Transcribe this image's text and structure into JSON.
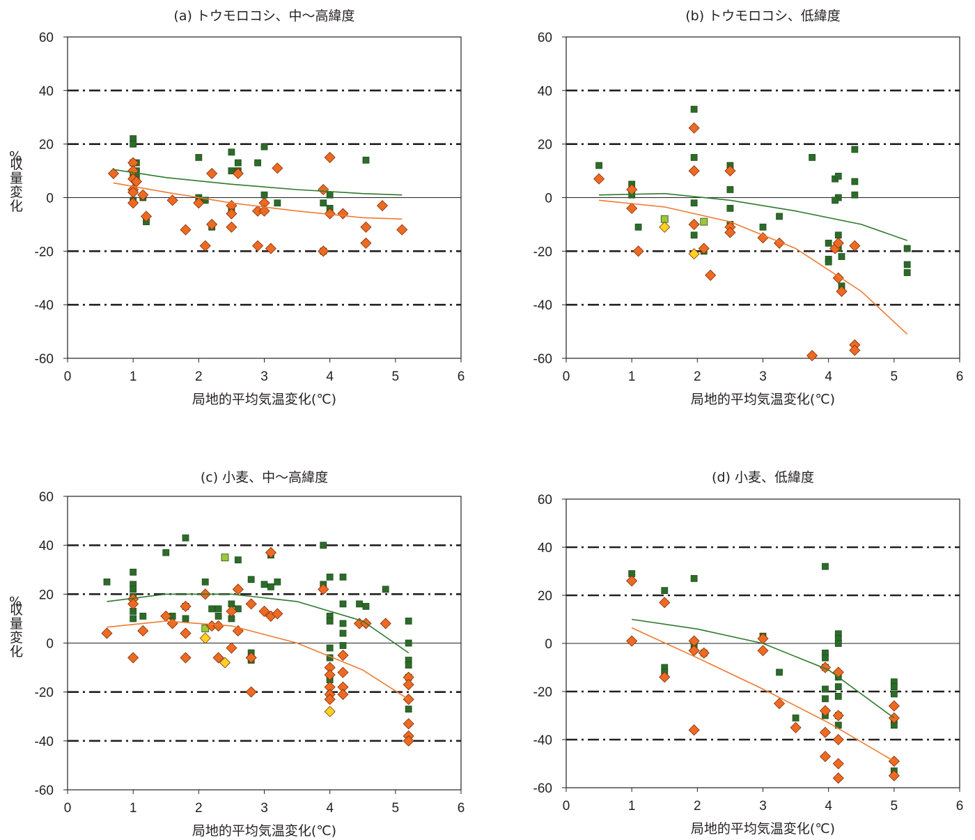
{
  "colors": {
    "square": "#2d6b2a",
    "square_stroke": "#1f4f1d",
    "diamond": "#ee6a22",
    "diamond_stroke": "#7a2e0a",
    "square_highlight": "#9dc73c",
    "diamond_highlight": "#ffd21f",
    "trend_square": "#2d7a2d",
    "trend_diamond": "#f07a30",
    "axis": "#231f20"
  },
  "ylabel_percent": "%",
  "ylabel": "収量変化",
  "chart_data": [
    {
      "type": "scatter",
      "title": "(a) トウモロコシ、中～高緯度",
      "xlabel": "局地的平均気温変化(℃)",
      "xlim": [
        0,
        6
      ],
      "ylim": [
        -60,
        60
      ],
      "xticks": [
        "0",
        "1",
        "2",
        "3",
        "4",
        "5",
        "6"
      ],
      "yticks": [
        "60",
        "40",
        "20",
        "0",
        "-20",
        "-40",
        "-60"
      ],
      "grid": [
        40,
        20,
        -20,
        -40
      ],
      "squares": [
        [
          1.0,
          22
        ],
        [
          1.0,
          20
        ],
        [
          1.0,
          13
        ],
        [
          1.05,
          13
        ],
        [
          1.05,
          10
        ],
        [
          1.0,
          9
        ],
        [
          1.05,
          8
        ],
        [
          1.0,
          -1
        ],
        [
          1.15,
          0
        ],
        [
          1.2,
          -9
        ],
        [
          2.0,
          15
        ],
        [
          2.0,
          0
        ],
        [
          2.1,
          -1
        ],
        [
          2.2,
          -11
        ],
        [
          2.5,
          17
        ],
        [
          2.5,
          10
        ],
        [
          2.5,
          -4
        ],
        [
          2.6,
          10
        ],
        [
          2.6,
          13
        ],
        [
          2.9,
          13
        ],
        [
          3.0,
          19
        ],
        [
          3.0,
          1
        ],
        [
          3.2,
          -2
        ],
        [
          3.9,
          -2
        ],
        [
          3.9,
          -20
        ],
        [
          4.0,
          1
        ],
        [
          4.0,
          -4
        ],
        [
          4.55,
          14
        ]
      ],
      "diamonds": [
        [
          0.7,
          9
        ],
        [
          1.0,
          13
        ],
        [
          1.0,
          10
        ],
        [
          1.0,
          7
        ],
        [
          1.0,
          3
        ],
        [
          1.0,
          2
        ],
        [
          1.0,
          -2
        ],
        [
          1.05,
          6
        ],
        [
          1.15,
          1
        ],
        [
          1.2,
          -7
        ],
        [
          1.6,
          -1
        ],
        [
          1.8,
          -12
        ],
        [
          2.0,
          -2
        ],
        [
          2.1,
          -18
        ],
        [
          2.2,
          9
        ],
        [
          2.2,
          -10
        ],
        [
          2.5,
          -3
        ],
        [
          2.5,
          -6
        ],
        [
          2.5,
          -11
        ],
        [
          2.6,
          9
        ],
        [
          2.9,
          -5
        ],
        [
          2.9,
          -18
        ],
        [
          3.0,
          -2
        ],
        [
          3.0,
          -5
        ],
        [
          3.1,
          -19
        ],
        [
          3.2,
          11
        ],
        [
          3.9,
          3
        ],
        [
          3.9,
          -20
        ],
        [
          4.0,
          -6
        ],
        [
          4.0,
          15
        ],
        [
          4.2,
          -6
        ],
        [
          4.55,
          -11
        ],
        [
          4.55,
          -17
        ],
        [
          4.8,
          -3
        ],
        [
          5.1,
          -12
        ]
      ],
      "highlight_squares": [],
      "highlight_diamonds": [],
      "trend_squares": [
        [
          0.7,
          10.5
        ],
        [
          1.5,
          7.5
        ],
        [
          2.5,
          5
        ],
        [
          3.5,
          3
        ],
        [
          4.5,
          1.5
        ],
        [
          5.1,
          1
        ]
      ],
      "trend_diamonds": [
        [
          0.7,
          5.5
        ],
        [
          1.5,
          2
        ],
        [
          2.5,
          -2
        ],
        [
          3.5,
          -5
        ],
        [
          4.5,
          -7.5
        ],
        [
          5.1,
          -8
        ]
      ]
    },
    {
      "type": "scatter",
      "title": "(b) トウモロコシ、低緯度",
      "xlabel": "局地的平均気温変化(℃)",
      "xlim": [
        0,
        6
      ],
      "ylim": [
        -60,
        60
      ],
      "xticks": [
        "0",
        "1",
        "2",
        "3",
        "4",
        "5",
        "6"
      ],
      "yticks": [
        "60",
        "40",
        "20",
        "0",
        "-20",
        "-40",
        "-60"
      ],
      "grid": [
        40,
        20,
        -20,
        -40
      ],
      "squares": [
        [
          0.5,
          12
        ],
        [
          1.0,
          5
        ],
        [
          1.0,
          1
        ],
        [
          1.1,
          -11
        ],
        [
          1.95,
          33
        ],
        [
          1.95,
          15
        ],
        [
          1.95,
          -2
        ],
        [
          1.95,
          -14
        ],
        [
          2.1,
          -20
        ],
        [
          2.5,
          12
        ],
        [
          2.5,
          3
        ],
        [
          2.5,
          -4
        ],
        [
          2.5,
          -10
        ],
        [
          3.0,
          -11
        ],
        [
          3.25,
          -7
        ],
        [
          3.75,
          15
        ],
        [
          4.0,
          -17
        ],
        [
          4.0,
          -23
        ],
        [
          4.0,
          -24
        ],
        [
          4.1,
          7
        ],
        [
          4.15,
          8
        ],
        [
          4.15,
          0
        ],
        [
          4.1,
          -1
        ],
        [
          4.15,
          -14
        ],
        [
          4.15,
          -19
        ],
        [
          4.2,
          -22
        ],
        [
          4.2,
          -33
        ],
        [
          4.4,
          18
        ],
        [
          4.4,
          6
        ],
        [
          4.4,
          1
        ],
        [
          5.2,
          -19
        ],
        [
          5.2,
          -25
        ],
        [
          5.2,
          -28
        ]
      ],
      "diamonds": [
        [
          0.5,
          7
        ],
        [
          1.0,
          3
        ],
        [
          1.0,
          -4
        ],
        [
          1.1,
          -20
        ],
        [
          1.95,
          26
        ],
        [
          1.95,
          10
        ],
        [
          1.95,
          -10
        ],
        [
          2.1,
          -19
        ],
        [
          2.2,
          -29
        ],
        [
          2.5,
          10
        ],
        [
          2.5,
          -11
        ],
        [
          2.5,
          -13
        ],
        [
          3.0,
          -15
        ],
        [
          3.25,
          -17
        ],
        [
          3.75,
          -59
        ],
        [
          4.1,
          -19
        ],
        [
          4.15,
          -17
        ],
        [
          4.15,
          -30
        ],
        [
          4.2,
          -35
        ],
        [
          4.4,
          -18
        ],
        [
          4.4,
          -55
        ],
        [
          4.4,
          -57
        ]
      ],
      "highlight_squares": [
        [
          1.5,
          -8
        ],
        [
          2.1,
          -9
        ]
      ],
      "highlight_diamonds": [
        [
          1.5,
          -11
        ],
        [
          1.95,
          -21
        ]
      ],
      "trend_squares": [
        [
          0.5,
          1
        ],
        [
          1.5,
          1.5
        ],
        [
          2.5,
          -1
        ],
        [
          3.5,
          -5
        ],
        [
          4.5,
          -10
        ],
        [
          5.2,
          -16
        ]
      ],
      "trend_diamonds": [
        [
          0.5,
          -1
        ],
        [
          1.5,
          -3.5
        ],
        [
          2.5,
          -9
        ],
        [
          3.5,
          -19
        ],
        [
          4.5,
          -35
        ],
        [
          5.2,
          -51
        ]
      ]
    },
    {
      "type": "scatter",
      "title": "(c) 小麦、中～高緯度",
      "xlabel": "局地的平均気温変化(℃)",
      "xlim": [
        0,
        6
      ],
      "ylim": [
        -60,
        60
      ],
      "xticks": [
        "0",
        "1",
        "2",
        "3",
        "4",
        "5",
        "6"
      ],
      "yticks": [
        "60",
        "40",
        "20",
        "0",
        "-20",
        "-40",
        "-60"
      ],
      "grid": [
        40,
        20,
        -20,
        -40
      ],
      "squares": [
        [
          0.6,
          25
        ],
        [
          1.0,
          29
        ],
        [
          1.0,
          24
        ],
        [
          1.0,
          22
        ],
        [
          1.0,
          19
        ],
        [
          1.0,
          13
        ],
        [
          1.0,
          10
        ],
        [
          1.15,
          11
        ],
        [
          1.5,
          37
        ],
        [
          1.6,
          11
        ],
        [
          1.8,
          43
        ],
        [
          1.8,
          15
        ],
        [
          1.8,
          10
        ],
        [
          2.1,
          25
        ],
        [
          2.2,
          14
        ],
        [
          2.3,
          14
        ],
        [
          2.3,
          11
        ],
        [
          2.5,
          16
        ],
        [
          2.5,
          10
        ],
        [
          2.6,
          34
        ],
        [
          2.6,
          14
        ],
        [
          2.8,
          26
        ],
        [
          2.8,
          -4
        ],
        [
          2.8,
          -7
        ],
        [
          3.0,
          24
        ],
        [
          3.1,
          36
        ],
        [
          3.1,
          23
        ],
        [
          3.2,
          25
        ],
        [
          3.9,
          40
        ],
        [
          3.9,
          24
        ],
        [
          4.0,
          27
        ],
        [
          4.0,
          11
        ],
        [
          4.0,
          9
        ],
        [
          4.0,
          -2
        ],
        [
          4.0,
          -6
        ],
        [
          4.0,
          -15
        ],
        [
          4.2,
          27
        ],
        [
          4.2,
          16
        ],
        [
          4.2,
          8
        ],
        [
          4.2,
          4
        ],
        [
          4.2,
          -1
        ],
        [
          4.45,
          16
        ],
        [
          4.55,
          15
        ],
        [
          4.85,
          22
        ],
        [
          5.2,
          9
        ],
        [
          5.2,
          0
        ],
        [
          5.2,
          -7
        ],
        [
          5.2,
          -9
        ],
        [
          5.2,
          -14
        ],
        [
          5.2,
          -27
        ]
      ],
      "diamonds": [
        [
          0.6,
          4
        ],
        [
          1.0,
          18
        ],
        [
          1.0,
          16
        ],
        [
          1.0,
          -6
        ],
        [
          1.15,
          5
        ],
        [
          1.5,
          11
        ],
        [
          1.6,
          8
        ],
        [
          1.8,
          15
        ],
        [
          1.8,
          4
        ],
        [
          1.8,
          -6
        ],
        [
          2.1,
          20
        ],
        [
          2.2,
          7
        ],
        [
          2.3,
          7
        ],
        [
          2.3,
          -6
        ],
        [
          2.5,
          13
        ],
        [
          2.5,
          -2
        ],
        [
          2.6,
          22
        ],
        [
          2.6,
          5
        ],
        [
          2.8,
          16
        ],
        [
          2.8,
          -6
        ],
        [
          2.8,
          -20
        ],
        [
          3.0,
          13
        ],
        [
          3.1,
          37
        ],
        [
          3.1,
          11
        ],
        [
          3.2,
          12
        ],
        [
          3.9,
          22
        ],
        [
          4.0,
          -10
        ],
        [
          4.0,
          -13
        ],
        [
          4.0,
          -18
        ],
        [
          4.0,
          -21
        ],
        [
          4.0,
          -23
        ],
        [
          4.2,
          -5
        ],
        [
          4.2,
          -12
        ],
        [
          4.2,
          -18
        ],
        [
          4.2,
          -21
        ],
        [
          4.45,
          8
        ],
        [
          4.55,
          8
        ],
        [
          4.85,
          8
        ],
        [
          5.2,
          -14
        ],
        [
          5.2,
          -17
        ],
        [
          5.2,
          -23
        ],
        [
          5.2,
          -33
        ],
        [
          5.2,
          -38
        ],
        [
          5.2,
          -40
        ]
      ],
      "highlight_squares": [
        [
          2.1,
          6
        ],
        [
          2.4,
          35
        ]
      ],
      "highlight_diamonds": [
        [
          2.1,
          2
        ],
        [
          2.4,
          -8
        ],
        [
          4.0,
          -28
        ]
      ],
      "trend_squares": [
        [
          0.6,
          17
        ],
        [
          1.5,
          20
        ],
        [
          2.5,
          20
        ],
        [
          3.5,
          17
        ],
        [
          4.5,
          9
        ],
        [
          5.2,
          -4
        ]
      ],
      "trend_diamonds": [
        [
          0.6,
          6.5
        ],
        [
          1.5,
          9
        ],
        [
          2.5,
          7
        ],
        [
          3.5,
          0
        ],
        [
          4.5,
          -11
        ],
        [
          5.2,
          -23
        ]
      ]
    },
    {
      "type": "scatter",
      "title": "(d) 小麦、低緯度",
      "xlabel": "局地的平均気温変化(℃)",
      "xlim": [
        0,
        6
      ],
      "ylim": [
        -60,
        60
      ],
      "xticks": [
        "0",
        "1",
        "2",
        "3",
        "4",
        "5",
        "6"
      ],
      "yticks": [
        "60",
        "40",
        "20",
        "0",
        "-20",
        "-40",
        "-60"
      ],
      "grid": [
        40,
        20,
        -20,
        -40
      ],
      "squares": [
        [
          1.0,
          29
        ],
        [
          1.5,
          22
        ],
        [
          1.5,
          -10
        ],
        [
          1.5,
          -12
        ],
        [
          1.95,
          27
        ],
        [
          1.95,
          -1
        ],
        [
          2.1,
          -4
        ],
        [
          3.0,
          3
        ],
        [
          3.25,
          -12
        ],
        [
          3.5,
          -31
        ],
        [
          3.95,
          32
        ],
        [
          3.95,
          -4
        ],
        [
          3.95,
          -6
        ],
        [
          3.95,
          -10
        ],
        [
          3.95,
          -19
        ],
        [
          3.95,
          -23
        ],
        [
          3.95,
          -30
        ],
        [
          4.15,
          4
        ],
        [
          4.15,
          2
        ],
        [
          4.15,
          0
        ],
        [
          4.15,
          -14
        ],
        [
          4.15,
          -18
        ],
        [
          4.15,
          -22
        ],
        [
          4.15,
          -30
        ],
        [
          4.15,
          -34
        ],
        [
          5.0,
          -16
        ],
        [
          5.0,
          -18
        ],
        [
          5.0,
          -21
        ],
        [
          5.0,
          -32
        ],
        [
          5.0,
          -34
        ],
        [
          5.0,
          -53
        ]
      ],
      "diamonds": [
        [
          1.0,
          26
        ],
        [
          1.0,
          1
        ],
        [
          1.5,
          17
        ],
        [
          1.5,
          -14
        ],
        [
          1.95,
          1
        ],
        [
          1.95,
          -3
        ],
        [
          1.95,
          -36
        ],
        [
          2.1,
          -4
        ],
        [
          3.0,
          2
        ],
        [
          3.0,
          -3
        ],
        [
          3.25,
          -25
        ],
        [
          3.5,
          -35
        ],
        [
          3.95,
          -10
        ],
        [
          3.95,
          -28
        ],
        [
          3.95,
          -37
        ],
        [
          3.95,
          -47
        ],
        [
          4.15,
          -12
        ],
        [
          4.15,
          -30
        ],
        [
          4.15,
          -40
        ],
        [
          4.15,
          -50
        ],
        [
          4.15,
          -56
        ],
        [
          5.0,
          -26
        ],
        [
          5.0,
          -31
        ],
        [
          5.0,
          -49
        ],
        [
          5.0,
          -55
        ]
      ],
      "highlight_squares": [],
      "highlight_diamonds": [],
      "trend_squares": [
        [
          1.0,
          10
        ],
        [
          2.0,
          6
        ],
        [
          3.0,
          0
        ],
        [
          4.0,
          -11
        ],
        [
          5.0,
          -31
        ]
      ],
      "trend_diamonds": [
        [
          1.0,
          6.5
        ],
        [
          2.0,
          -6
        ],
        [
          3.0,
          -19
        ],
        [
          4.0,
          -33
        ],
        [
          5.0,
          -49
        ]
      ]
    }
  ]
}
